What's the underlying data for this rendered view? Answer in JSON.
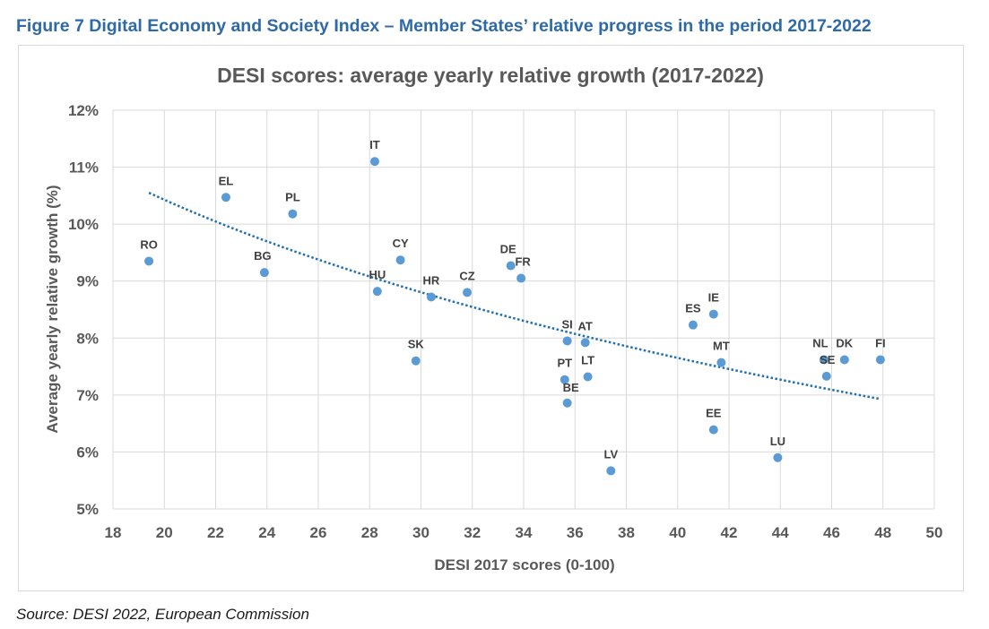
{
  "figure_title": "Figure 7 Digital Economy and Society Index – Member States’ relative progress in the period 2017-2022",
  "source": "Source: DESI 2022, European Commission",
  "colors": {
    "point": "#5b9bd5",
    "trend": "#1f6fb2",
    "grid": "#d9d9d9",
    "title_blue": "#2f6aa8",
    "text": "#595959"
  },
  "chart_data": {
    "type": "scatter",
    "title": "DESI scores: average yearly relative growth (2017-2022)",
    "xlabel": "DESI 2017 scores (0-100)",
    "ylabel": "Average yearly relative growth (%)",
    "xlim": [
      18,
      50
    ],
    "ylim": [
      5,
      12
    ],
    "xticks": [
      18,
      20,
      22,
      24,
      26,
      28,
      30,
      32,
      34,
      36,
      38,
      40,
      42,
      44,
      46,
      48,
      50
    ],
    "yticks": [
      5,
      6,
      7,
      8,
      9,
      10,
      11,
      12
    ],
    "ytick_suffix": "%",
    "grid": true,
    "trendline": {
      "type": "logarithmic",
      "x_range": [
        19.4,
        47.9
      ],
      "y_start": 10.55,
      "y_end": 6.93
    },
    "points": [
      {
        "label": "RO",
        "x": 19.4,
        "y": 9.35
      },
      {
        "label": "EL",
        "x": 22.4,
        "y": 10.47
      },
      {
        "label": "BG",
        "x": 23.9,
        "y": 9.15
      },
      {
        "label": "PL",
        "x": 25.0,
        "y": 10.18
      },
      {
        "label": "IT",
        "x": 28.2,
        "y": 11.1
      },
      {
        "label": "HU",
        "x": 28.3,
        "y": 8.82
      },
      {
        "label": "CY",
        "x": 29.2,
        "y": 9.37
      },
      {
        "label": "SK",
        "x": 29.8,
        "y": 7.6
      },
      {
        "label": "HR",
        "x": 30.4,
        "y": 8.72
      },
      {
        "label": "CZ",
        "x": 31.8,
        "y": 8.8
      },
      {
        "label": "DE",
        "x": 33.5,
        "y": 9.27
      },
      {
        "label": "FR",
        "x": 33.9,
        "y": 9.05
      },
      {
        "label": "PT",
        "x": 35.6,
        "y": 7.27
      },
      {
        "label": "SI",
        "x": 35.7,
        "y": 7.95
      },
      {
        "label": "BE",
        "x": 35.7,
        "y": 6.86
      },
      {
        "label": "AT",
        "x": 36.4,
        "y": 7.92
      },
      {
        "label": "LT",
        "x": 36.5,
        "y": 7.32
      },
      {
        "label": "LV",
        "x": 37.4,
        "y": 5.67
      },
      {
        "label": "ES",
        "x": 40.6,
        "y": 8.23
      },
      {
        "label": "IE",
        "x": 41.4,
        "y": 8.42
      },
      {
        "label": "EE",
        "x": 41.4,
        "y": 6.39
      },
      {
        "label": "MT",
        "x": 41.7,
        "y": 7.57
      },
      {
        "label": "LU",
        "x": 43.9,
        "y": 5.9
      },
      {
        "label": "NL",
        "x": 45.7,
        "y": 7.62
      },
      {
        "label": "SE",
        "x": 45.8,
        "y": 7.33
      },
      {
        "label": "DK",
        "x": 46.5,
        "y": 7.62
      },
      {
        "label": "FI",
        "x": 47.9,
        "y": 7.62
      }
    ]
  }
}
